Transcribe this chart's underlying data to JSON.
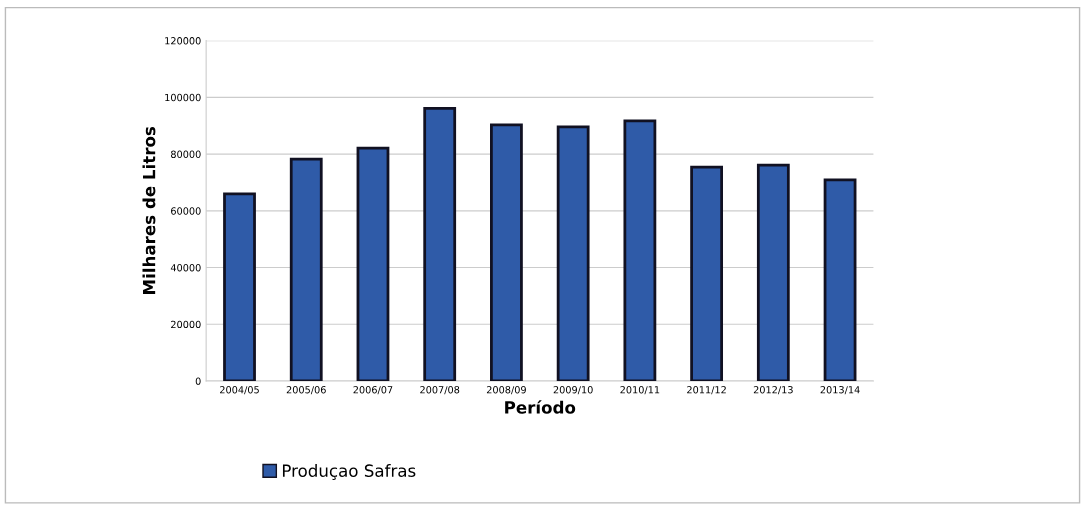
{
  "chart_data": {
    "type": "bar",
    "xlabel": "Período",
    "ylabel": "Milhares de Litros",
    "categories": [
      "2004/05",
      "2005/06",
      "2006/07",
      "2007/08",
      "2008/09",
      "2009/10",
      "2010/11",
      "2011/12",
      "2012/13",
      "2013/14"
    ],
    "series": [
      {
        "name": "Produçao Safras",
        "color": "#2f5ba8",
        "values": [
          66000,
          78200,
          82100,
          96100,
          90300,
          89600,
          91700,
          75400,
          76100,
          70900
        ]
      }
    ],
    "ylim": [
      0,
      120000
    ],
    "yticks": [
      0,
      20000,
      40000,
      60000,
      80000,
      100000,
      120000
    ],
    "grid": "y",
    "legend": "bottom"
  }
}
